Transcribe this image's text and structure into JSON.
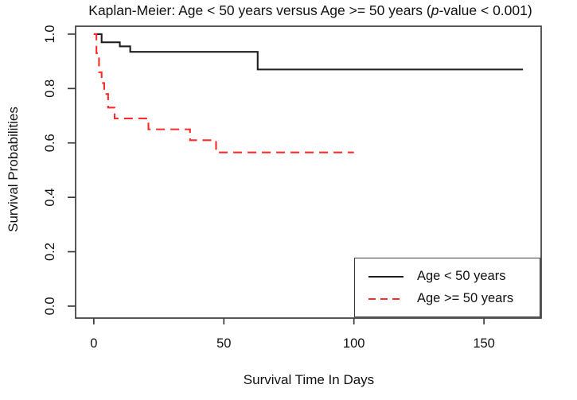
{
  "title": {
    "pre": "Kaplan-Meier: Age < 50 years versus Age >= 50 years (",
    "italic": "p",
    "post": "-value < 0.001)"
  },
  "chart_data": {
    "type": "line",
    "subtype": "kaplan-meier-step",
    "title": "Kaplan-Meier: Age < 50 years versus Age >= 50 years (p-value < 0.001)",
    "xlabel": "Survival Time In Days",
    "ylabel": "Survival Probabilities",
    "xlim": [
      -7,
      172
    ],
    "ylim": [
      -0.044,
      1.029
    ],
    "x_ticks": [
      0,
      50,
      100,
      150
    ],
    "x_tick_labels": [
      "0",
      "50",
      "100",
      "150"
    ],
    "y_ticks": [
      0.0,
      0.2,
      0.4,
      0.6,
      0.8,
      1.0
    ],
    "y_tick_labels": [
      "0.0",
      "0.2",
      "0.4",
      "0.6",
      "0.8",
      "1.0"
    ],
    "grid": false,
    "legend_position": "bottom-right",
    "frame_color": "#3c3c3c",
    "series": [
      {
        "name": "Age < 50 years",
        "color": "#1f1f1f",
        "dashed": false,
        "points": [
          [
            0,
            1.0
          ],
          [
            3,
            0.97
          ],
          [
            10,
            0.955
          ],
          [
            14,
            0.935
          ],
          [
            63,
            0.87
          ],
          [
            165,
            0.87
          ]
        ]
      },
      {
        "name": "Age >= 50 years",
        "color": "#ff2b2b",
        "dashed": true,
        "points": [
          [
            0,
            1.0
          ],
          [
            1,
            0.93
          ],
          [
            2,
            0.86
          ],
          [
            3,
            0.82
          ],
          [
            4,
            0.78
          ],
          [
            5.5,
            0.73
          ],
          [
            8,
            0.69
          ],
          [
            21,
            0.65
          ],
          [
            37,
            0.61
          ],
          [
            47,
            0.565
          ],
          [
            100,
            0.565
          ]
        ]
      }
    ]
  },
  "legend": {
    "entries": [
      {
        "label": "Age < 50 years",
        "color": "#1f1f1f",
        "dashed": false
      },
      {
        "label": "Age >= 50 years",
        "color": "#ff2b2b",
        "dashed": true
      }
    ]
  }
}
